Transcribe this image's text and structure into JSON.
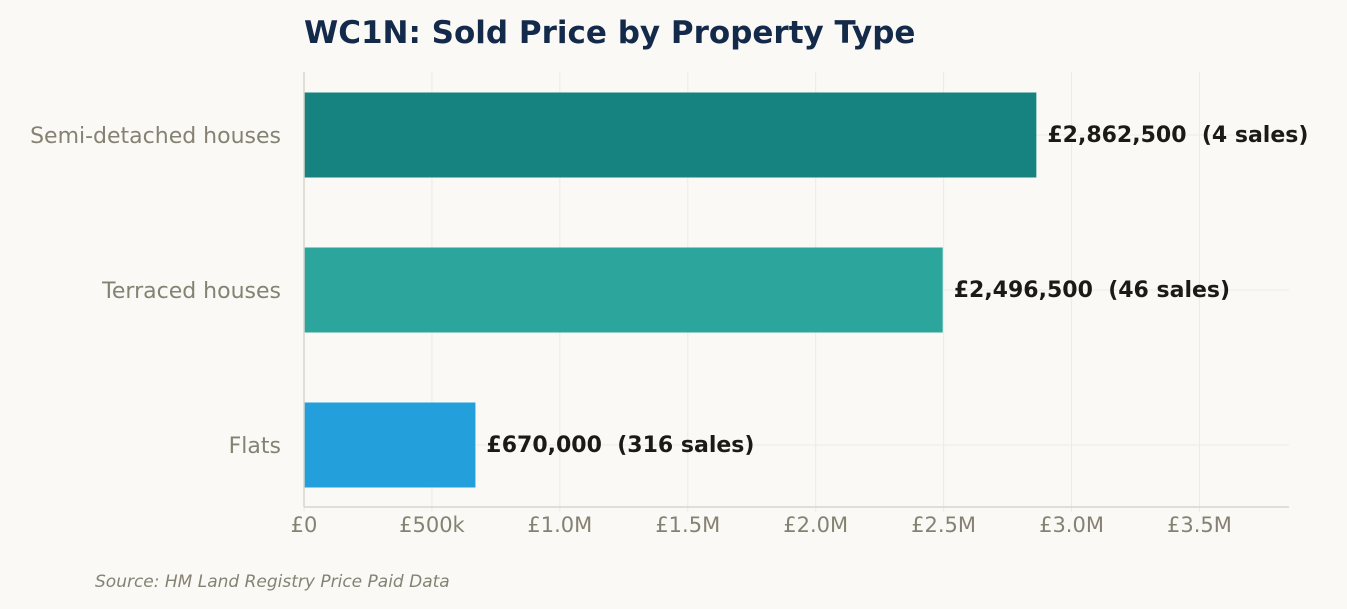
{
  "chart_data": {
    "type": "bar",
    "orientation": "horizontal",
    "title": "WC1N: Sold Price by Property Type",
    "categories": [
      "Semi-detached houses",
      "Terraced houses",
      "Flats"
    ],
    "values": [
      2862500,
      2496500,
      670000
    ],
    "value_labels": [
      "£2,862,500  (4 sales)",
      "£2,496,500  (46 sales)",
      "£670,000  (316 sales)"
    ],
    "colors": [
      "#178380",
      "#2ca69c",
      "#239fdb"
    ],
    "xlim": [
      0,
      3850000
    ],
    "xticks": [
      0,
      500000,
      1000000,
      1500000,
      2000000,
      2500000,
      3000000,
      3500000
    ],
    "xtick_labels": [
      "£0",
      "£500k",
      "£1.0M",
      "£1.5M",
      "£2.0M",
      "£2.5M",
      "£3.0M",
      "£3.5M"
    ],
    "xlabel": "",
    "ylabel": "",
    "grid": true
  },
  "footer": {
    "source": "Source: HM Land Registry Price Paid Data"
  }
}
